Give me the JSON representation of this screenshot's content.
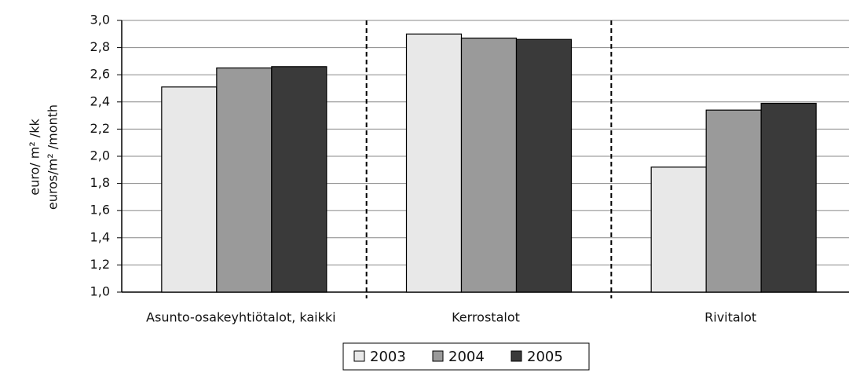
{
  "chart_data": {
    "type": "bar",
    "ylabel": [
      "euro/ m² /kk",
      "euros/m² /month"
    ],
    "categories": [
      "Asunto-osakeyhtiötalot, kaikki",
      "Kerrostalot",
      "Rivitalot"
    ],
    "series": [
      {
        "name": "2003",
        "color": "#e8e8e8",
        "values": [
          2.51,
          2.9,
          1.92
        ]
      },
      {
        "name": "2004",
        "color": "#9a9a9a",
        "values": [
          2.65,
          2.87,
          2.34
        ]
      },
      {
        "name": "2005",
        "color": "#3a3a3a",
        "values": [
          2.66,
          2.86,
          2.39
        ]
      }
    ],
    "ylim": [
      1.0,
      3.0
    ],
    "yticks": [
      {
        "value": 1.0,
        "label": "1,0"
      },
      {
        "value": 1.2,
        "label": "1,2"
      },
      {
        "value": 1.4,
        "label": "1,4"
      },
      {
        "value": 1.6,
        "label": "1,6"
      },
      {
        "value": 1.8,
        "label": "1,8"
      },
      {
        "value": 2.0,
        "label": "2,0"
      },
      {
        "value": 2.2,
        "label": "2,2"
      },
      {
        "value": 2.4,
        "label": "2,4"
      },
      {
        "value": 2.6,
        "label": "2,6"
      },
      {
        "value": 2.8,
        "label": "2,8"
      },
      {
        "value": 3.0,
        "label": "3,0"
      }
    ],
    "grid": true,
    "legend": "bottom"
  }
}
